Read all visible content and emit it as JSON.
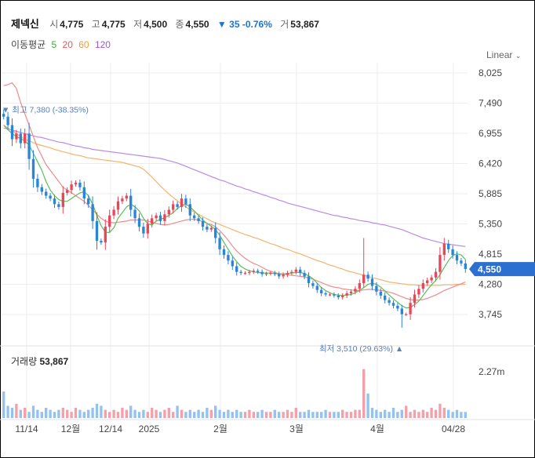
{
  "header": {
    "name": "제넥신",
    "open_label": "시",
    "open": "4,775",
    "high_label": "고",
    "high": "4,775",
    "low_label": "저",
    "low": "4,500",
    "close_label": "종",
    "close": "4,550",
    "change_arrow": "▼",
    "change": "35",
    "change_pct": "-0.76%",
    "volume_label": "거",
    "volume": "53,867"
  },
  "moving_average": {
    "label": "이동평균",
    "periods": [
      {
        "period": "5",
        "color": "#3aa83a"
      },
      {
        "period": "20",
        "color": "#e8585a"
      },
      {
        "period": "60",
        "color": "#f29a3c"
      },
      {
        "period": "120",
        "color": "#a05ad8"
      }
    ]
  },
  "scale_mode": "Linear",
  "volume_panel": {
    "label": "거래량",
    "value": "53,867",
    "tick": "2.27m"
  },
  "colors": {
    "up": "#e8475a",
    "down": "#2a84d8",
    "grid": "#eeeeee",
    "tag": "#2b6fd1"
  },
  "chart_data": {
    "type": "candlestick",
    "y_ticks": [
      "8,025",
      "7,490",
      "6,955",
      "6,420",
      "5,885",
      "5,350",
      "4,815",
      "4,280",
      "3,745"
    ],
    "ylim": [
      3400,
      8250
    ],
    "x_ticks": [
      "11/14",
      "12월",
      "12/14",
      "2025",
      "2월",
      "3월",
      "4월",
      "04/28"
    ],
    "current_price": "4,550",
    "annotations": {
      "max_label": "최고 7,380 (-38.35%)",
      "min_label": "최저 3,510 (29.63%)"
    },
    "closes": [
      7250,
      7100,
      6850,
      6950,
      6780,
      6950,
      6500,
      6150,
      6000,
      5920,
      5850,
      5800,
      5700,
      5650,
      5900,
      5950,
      6050,
      6080,
      6000,
      5800,
      5700,
      5400,
      5050,
      5020,
      5300,
      5500,
      5600,
      5750,
      5800,
      5850,
      5600,
      5450,
      5300,
      5180,
      5350,
      5450,
      5500,
      5400,
      5520,
      5600,
      5700,
      5650,
      5800,
      5700,
      5500,
      5450,
      5400,
      5300,
      5250,
      5280,
      5100,
      4900,
      4800,
      4700,
      4600,
      4500,
      4480,
      4480,
      4500,
      4520,
      4500,
      4460,
      4470,
      4480,
      4460,
      4420,
      4450,
      4480,
      4500,
      4540,
      4480,
      4420,
      4300,
      4250,
      4180,
      4120,
      4100,
      4100,
      4080,
      4050,
      4080,
      4120,
      4150,
      4200,
      4300,
      4450,
      4380,
      4250,
      4150,
      4080,
      4000,
      3950,
      3900,
      3850,
      3750,
      3750,
      3950,
      4100,
      4200,
      4300,
      4350,
      4400,
      4500,
      4800,
      5000,
      4900,
      4800,
      4700,
      4650,
      4550
    ],
    "ma5": [
      7100,
      7020,
      6950,
      6900,
      6860,
      6820,
      6750,
      6600,
      6450,
      6300,
      6100,
      5950,
      5850,
      5780,
      5750,
      5750,
      5800,
      5850,
      5900,
      5920,
      5850,
      5700,
      5500,
      5320,
      5200,
      5200,
      5280,
      5450,
      5550,
      5650,
      5700,
      5650,
      5580,
      5450,
      5350,
      5330,
      5400,
      5430,
      5460,
      5500,
      5550,
      5620,
      5680,
      5700,
      5650,
      5580,
      5500,
      5420,
      5360,
      5310,
      5250,
      5150,
      5020,
      4900,
      4780,
      4680,
      4600,
      4550,
      4520,
      4500,
      4490,
      4480,
      4480,
      4480,
      4470,
      4460,
      4460,
      4470,
      4480,
      4490,
      4490,
      4470,
      4430,
      4380,
      4300,
      4220,
      4170,
      4130,
      4100,
      4090,
      4080,
      4090,
      4100,
      4130,
      4170,
      4220,
      4280,
      4300,
      4280,
      4230,
      4160,
      4090,
      4020,
      3960,
      3900,
      3860,
      3870,
      3920,
      3980,
      4080,
      4180,
      4270,
      4350,
      4450,
      4580,
      4700,
      4790,
      4820,
      4800,
      4720
    ],
    "ma20": [
      7800,
      7820,
      7850,
      7750,
      7500,
      7300,
      7100,
      6900,
      6700,
      6550,
      6400,
      6300,
      6200,
      6100,
      6000,
      5950,
      5900,
      5850,
      5800,
      5750,
      5680,
      5600,
      5520,
      5450,
      5400,
      5380,
      5370,
      5380,
      5390,
      5400,
      5420,
      5420,
      5420,
      5420,
      5400,
      5380,
      5360,
      5340,
      5330,
      5340,
      5360,
      5380,
      5400,
      5420,
      5430,
      5430,
      5420,
      5390,
      5360,
      5340,
      5300,
      5230,
      5150,
      5060,
      4960,
      4870,
      4800,
      4740,
      4690,
      4650,
      4620,
      4580,
      4540,
      4510,
      4490,
      4470,
      4460,
      4450,
      4440,
      4430,
      4420,
      4410,
      4390,
      4370,
      4340,
      4310,
      4280,
      4250,
      4230,
      4220,
      4200,
      4190,
      4180,
      4170,
      4170,
      4180,
      4190,
      4190,
      4180,
      4170,
      4160,
      4140,
      4120,
      4090,
      4060,
      4030,
      4010,
      4000,
      4000,
      4010,
      4030,
      4060,
      4090,
      4130,
      4170,
      4200,
      4230,
      4260,
      4290,
      4320
    ],
    "ma60": [
      7100,
      7050,
      7000,
      6950,
      6900,
      6850,
      6820,
      6790,
      6760,
      6740,
      6720,
      6700,
      6670,
      6650,
      6630,
      6610,
      6590,
      6570,
      6560,
      6540,
      6520,
      6510,
      6500,
      6490,
      6480,
      6470,
      6460,
      6450,
      6440,
      6420,
      6400,
      6380,
      6360,
      6320,
      6250,
      6180,
      6100,
      6020,
      5950,
      5880,
      5820,
      5760,
      5700,
      5650,
      5600,
      5560,
      5520,
      5480,
      5440,
      5400,
      5370,
      5340,
      5310,
      5280,
      5250,
      5220,
      5190,
      5160,
      5140,
      5110,
      5090,
      5060,
      5030,
      5000,
      4980,
      4950,
      4920,
      4900,
      4870,
      4840,
      4820,
      4790,
      4760,
      4730,
      4700,
      4680,
      4650,
      4620,
      4600,
      4570,
      4550,
      4520,
      4500,
      4480,
      4460,
      4440,
      4420,
      4400,
      4380,
      4360,
      4340,
      4320,
      4310,
      4300,
      4290,
      4280,
      4270,
      4270,
      4260,
      4260,
      4260,
      4260,
      4260,
      4260,
      4270,
      4270,
      4270,
      4280,
      4280,
      4280
    ],
    "ma120": [
      7050,
      7030,
      7010,
      6990,
      6970,
      6950,
      6930,
      6910,
      6890,
      6880,
      6860,
      6840,
      6820,
      6800,
      6790,
      6770,
      6750,
      6730,
      6720,
      6700,
      6690,
      6670,
      6660,
      6650,
      6640,
      6630,
      6620,
      6610,
      6600,
      6590,
      6580,
      6570,
      6560,
      6550,
      6540,
      6530,
      6520,
      6510,
      6490,
      6470,
      6450,
      6430,
      6400,
      6370,
      6340,
      6310,
      6280,
      6250,
      6220,
      6190,
      6160,
      6130,
      6110,
      6080,
      6050,
      6020,
      6000,
      5970,
      5950,
      5920,
      5900,
      5870,
      5850,
      5820,
      5800,
      5770,
      5750,
      5720,
      5700,
      5680,
      5660,
      5640,
      5620,
      5600,
      5580,
      5560,
      5540,
      5520,
      5500,
      5490,
      5470,
      5460,
      5440,
      5430,
      5410,
      5400,
      5390,
      5370,
      5360,
      5340,
      5330,
      5310,
      5290,
      5270,
      5250,
      5220,
      5190,
      5160,
      5130,
      5100,
      5080,
      5060,
      5040,
      5020,
      5000,
      4990,
      4980,
      4970,
      4960,
      4950
    ],
    "volumes": [
      1.3,
      0.6,
      0.5,
      0.7,
      0.4,
      0.5,
      0.3,
      0.6,
      0.4,
      0.3,
      0.5,
      0.4,
      0.3,
      0.4,
      0.5,
      0.4,
      0.3,
      0.5,
      0.4,
      0.3,
      0.4,
      0.5,
      0.7,
      0.6,
      0.4,
      0.3,
      0.4,
      0.3,
      0.5,
      0.4,
      0.6,
      0.4,
      0.3,
      0.4,
      0.3,
      0.5,
      0.4,
      0.3,
      0.4,
      0.5,
      0.3,
      0.6,
      0.4,
      0.3,
      0.4,
      0.3,
      0.4,
      0.3,
      0.5,
      0.4,
      0.6,
      0.4,
      0.3,
      0.4,
      0.3,
      0.4,
      0.3,
      0.3,
      0.4,
      0.3,
      0.3,
      0.4,
      0.3,
      0.3,
      0.4,
      0.3,
      0.3,
      0.4,
      0.3,
      0.5,
      0.3,
      0.3,
      0.4,
      0.3,
      0.3,
      0.3,
      0.4,
      0.3,
      0.3,
      0.3,
      0.4,
      0.3,
      0.3,
      0.4,
      0.4,
      2.4,
      1.2,
      0.5,
      0.4,
      0.3,
      0.4,
      0.3,
      0.5,
      0.3,
      0.4,
      0.6,
      0.3,
      0.4,
      0.3,
      0.4,
      0.3,
      0.5,
      0.4,
      0.7,
      0.5,
      0.4,
      0.3,
      0.4,
      0.3,
      0.3
    ]
  }
}
